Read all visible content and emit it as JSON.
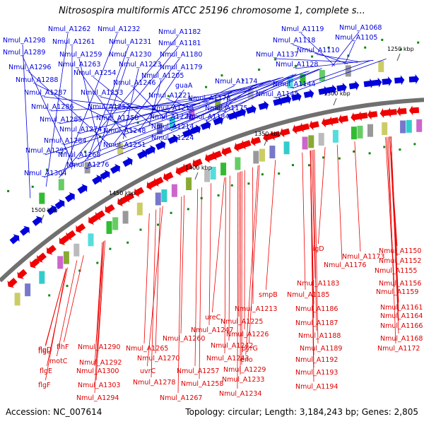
{
  "title": "Nitrosospira multiformis ATCC 25196 chromosome 1, complete s...",
  "footer": {
    "accession": "Accession: NC_007614",
    "stats": "Topology: circular; Length: 3,184,243 bp; Genes: 2,805"
  },
  "ticks": [
    "1250 kbp",
    "1300 kbp",
    "1350 kbp",
    "1400 kbp",
    "1450 kbp",
    "1500 kbp"
  ],
  "colors": {
    "forward": "#0000dd",
    "reverse": "#ee0000",
    "backbone": "#707070",
    "text": "#0000dd",
    "reverse_text": "#dd0000"
  },
  "forward_labels": [
    "Nmul_A1298",
    "Nmul_A1262",
    "Nmul_A1232",
    "Nmul_A1182",
    "Nmul_A1289",
    "Nmul_A1261",
    "Nmul_A1231",
    "Nmul_A1181",
    "Nmul_A1259",
    "Nmul_A1230",
    "Nmul_A1180",
    "Nmul_A1296",
    "Nmul_A1263",
    "Nmul_A1223",
    "Nmul_A1179",
    "Nmul_A1288",
    "Nmul_A1254",
    "Nmul_A1205",
    "Nmul_A1246",
    "guaA",
    "Nmul_A1287",
    "Nmul_A1253",
    "Nmul_A1221",
    "Nmul_A1174",
    "Nmul_A1178",
    "Nmul_A1286",
    "Nmul_A1252",
    "Nmul_A1215",
    "Nmul_A1175",
    "Nmul_A1285",
    "Nmul_A1250",
    "Nmul_A1222",
    "Nmul_A1184",
    "Nmul_A1274",
    "Nmul_A1214",
    "Nmul_A1248",
    "Nmul_A1284",
    "Nmul_A1224",
    "Nmul_A1251",
    "Nmul_A1295",
    "Nmul_A1268",
    "Nmul_A1276",
    "Nmul_A1304",
    "Nmul_A1119",
    "Nmul_A1068",
    "Nmul_A1118",
    "Nmul_A1105",
    "Nmul_A1110",
    "Nmul_A1137",
    "Nmul_A1128",
    "Nmul_A1144",
    "Nmul_A1145"
  ],
  "reverse_labels": [
    "ligD",
    "Nmul_A1150",
    "Nmul_A1173",
    "Nmul_A1152",
    "Nmul_A1176",
    "Nmul_A1155",
    "Nmul_A1183",
    "Nmul_A1156",
    "smpB",
    "Nmul_A1185",
    "Nmul_A1159",
    "Nmul_A1213",
    "Nmul_A1186",
    "Nmul_A1161",
    "ureC",
    "Nmul_A1225",
    "Nmul_A1187",
    "Nmul_A1164",
    "Nmul_A1247",
    "Nmul_A1226",
    "Nmul_A1188",
    "Nmul_A1166",
    "Nmul_A1260",
    "Nmul_A1242",
    "pyrG",
    "Nmul_A1168",
    "flgL",
    "flgD",
    "flhF",
    "Nmul_A1290",
    "Nmul_A1265",
    "Nmul_A1189",
    "Nmul_A1172",
    "motC",
    "Nmul_A1292",
    "Nmul_A1270",
    "Nmul_A1243",
    "eno",
    "Nmul_A1192",
    "flgE",
    "Nmul_A1300",
    "uvrC",
    "Nmul_A1257",
    "Nmul_A1229",
    "Nmul_A1193",
    "Nmul_A1233",
    "flgF",
    "Nmul_A1303",
    "Nmul_A1278",
    "Nmul_A1258",
    "Nmul_A1194",
    "Nmul_A1294",
    "Nmul_A1267",
    "Nmul_A1234"
  ]
}
